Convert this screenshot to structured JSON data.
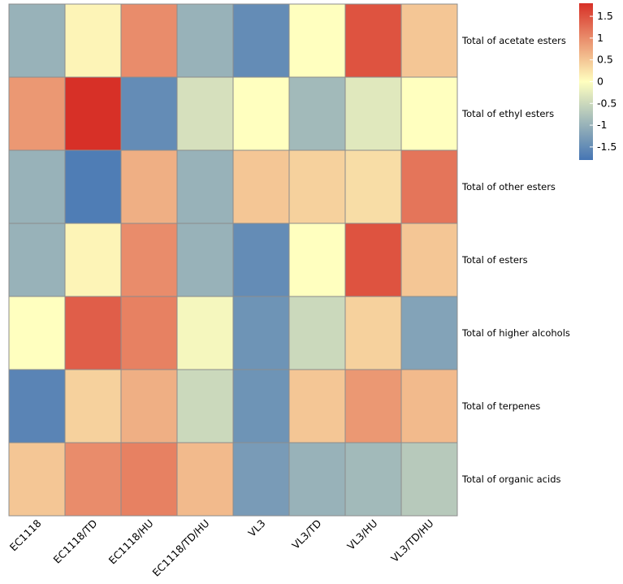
{
  "chart_data": {
    "type": "heatmap",
    "title": "",
    "xlabel": "",
    "ylabel": "",
    "columns": [
      "EC1118",
      "EC1118/TD",
      "EC1118/HU",
      "EC1118/TD/HU",
      "VL3",
      "VL3/TD",
      "VL3/HU",
      "VL3/TD/HU"
    ],
    "rows": [
      "Total of acetate esters",
      "Total of ethyl esters",
      "Total of other esters",
      "Total of esters",
      "Total of higher alcohols",
      "Total of terpenes",
      "Total of organic acids"
    ],
    "values": [
      [
        -1.0,
        0.1,
        1.0,
        -1.0,
        -1.5,
        0.0,
        1.5,
        0.5
      ],
      [
        0.9,
        1.8,
        -1.5,
        -0.4,
        0.0,
        -0.9,
        -0.3,
        0.0
      ],
      [
        -1.0,
        -1.7,
        0.7,
        -1.0,
        0.5,
        0.4,
        0.3,
        1.2
      ],
      [
        -1.0,
        0.1,
        1.0,
        -1.0,
        -1.5,
        0.0,
        1.5,
        0.5
      ],
      [
        0.0,
        1.4,
        1.1,
        -0.1,
        -1.4,
        -0.5,
        0.4,
        -1.2
      ],
      [
        -1.6,
        0.4,
        0.7,
        -0.5,
        -1.4,
        0.5,
        0.9,
        0.6
      ],
      [
        0.5,
        1.0,
        1.1,
        0.6,
        -1.3,
        -1.0,
        -0.9,
        -0.7
      ]
    ],
    "colorbar": {
      "range": [
        -1.8,
        1.8
      ],
      "ticks": [
        1.5,
        1,
        0.5,
        0,
        -0.5,
        -1,
        -1.5
      ],
      "tick_labels": [
        "1.5",
        "1",
        "0.5",
        "0",
        "-0.5",
        "-1",
        "-1.5"
      ],
      "colors": {
        "low": "#4575b4",
        "mid": "#ffffbf",
        "high": "#d73027"
      }
    },
    "grid": true,
    "legend": "right"
  }
}
